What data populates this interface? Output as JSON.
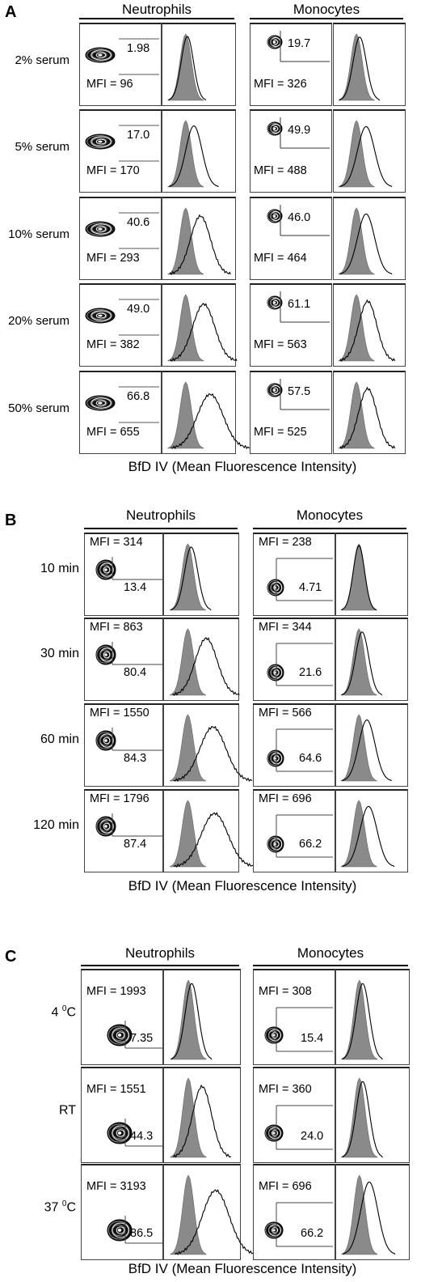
{
  "panelA": {
    "letter": "A",
    "groups": [
      "Neutrophils",
      "Monocytes"
    ],
    "xlabel": "BfD IV (Mean Fluorescence Intensity)",
    "rows": [
      {
        "label": "2% serum",
        "n_pct": "1.98",
        "n_mfi": "MFI = 96",
        "m_pct": "19.7",
        "m_mfi": "MFI = 326",
        "n_shift": 0.05,
        "m_shift": 0.1
      },
      {
        "label": "5% serum",
        "n_pct": "17.0",
        "n_mfi": "MFI = 170",
        "m_pct": "49.9",
        "m_mfi": "MFI = 488",
        "n_shift": 0.25,
        "m_shift": 0.3
      },
      {
        "label": "10% serum",
        "n_pct": "40.6",
        "n_mfi": "MFI = 293",
        "m_pct": "46.0",
        "m_mfi": "MFI = 464",
        "n_shift": 0.45,
        "m_shift": 0.3
      },
      {
        "label": "20% serum",
        "n_pct": "49.0",
        "n_mfi": "MFI = 382",
        "m_pct": "61.1",
        "m_mfi": "MFI = 563",
        "n_shift": 0.55,
        "m_shift": 0.35
      },
      {
        "label": "50% serum",
        "n_pct": "66.8",
        "n_mfi": "MFI = 655",
        "m_pct": "57.5",
        "m_mfi": "MFI = 525",
        "n_shift": 0.75,
        "m_shift": 0.35
      }
    ]
  },
  "panelB": {
    "letter": "B",
    "groups": [
      "Neutrophils",
      "Monocytes"
    ],
    "xlabel": "BfD IV (Mean Fluorescence Intensity)",
    "rows": [
      {
        "label": "10 min",
        "n_pct": "13.4",
        "n_mfi": "MFI = 314",
        "m_pct": "4.71",
        "m_mfi": "MFI = 238",
        "n_shift": 0.1,
        "m_shift": 0.0
      },
      {
        "label": "30 min",
        "n_pct": "80.4",
        "n_mfi": "MFI = 863",
        "m_pct": "21.6",
        "m_mfi": "MFI = 344",
        "n_shift": 0.55,
        "m_shift": 0.1
      },
      {
        "label": "60 min",
        "n_pct": "84.3",
        "n_mfi": "MFI = 1550",
        "m_pct": "64.6",
        "m_mfi": "MFI = 566",
        "n_shift": 0.75,
        "m_shift": 0.25
      },
      {
        "label": "120 min",
        "n_pct": "87.4",
        "n_mfi": "MFI = 1796",
        "m_pct": "66.2",
        "m_mfi": "MFI = 696",
        "n_shift": 0.8,
        "m_shift": 0.3
      }
    ]
  },
  "panelC": {
    "letter": "C",
    "groups": [
      "Neutrophils",
      "Monocytes"
    ],
    "xlabel": "BfD IV (Mean Fluorescence Intensity)",
    "rows": [
      {
        "label_main": "4 ",
        "label_sup": "0",
        "label_tail": "C",
        "n_pct": "7.35",
        "n_mfi": "MFI = 1993",
        "m_pct": "15.4",
        "m_mfi": "MFI = 308",
        "n_shift": 0.1,
        "m_shift": 0.1
      },
      {
        "label_main": "RT",
        "label_sup": "",
        "label_tail": "",
        "n_pct": "44.3",
        "n_mfi": "MFI = 1551",
        "m_pct": "24.0",
        "m_mfi": "MFI = 360",
        "n_shift": 0.4,
        "m_shift": 0.1
      },
      {
        "label_main": "37 ",
        "label_sup": "0",
        "label_tail": "C",
        "n_pct": "86.5",
        "n_mfi": "MFI = 3193",
        "m_pct": "66.2",
        "m_mfi": "MFI = 696",
        "n_shift": 0.8,
        "m_shift": 0.3
      }
    ]
  }
}
